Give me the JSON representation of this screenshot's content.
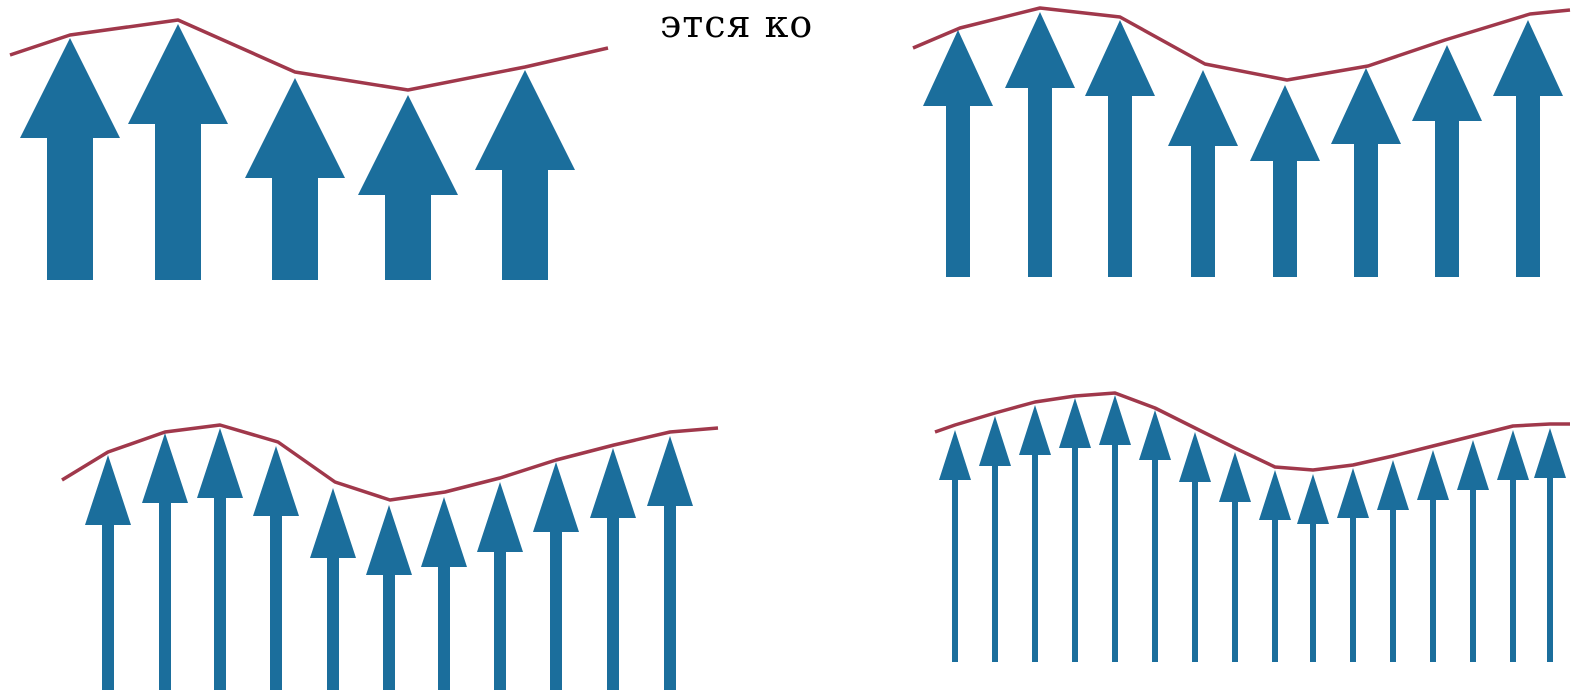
{
  "caption": "этся ко",
  "colors": {
    "arrow": "#1b6e9c",
    "envelope": "#a0384b",
    "background": "#ffffff"
  },
  "panels": [
    {
      "name": "panel-top-left",
      "arrow_count": 5
    },
    {
      "name": "panel-top-right",
      "arrow_count": 8
    },
    {
      "name": "panel-bottom-left",
      "arrow_count": 11
    },
    {
      "name": "panel-bottom-right",
      "arrow_count": 16
    }
  ]
}
